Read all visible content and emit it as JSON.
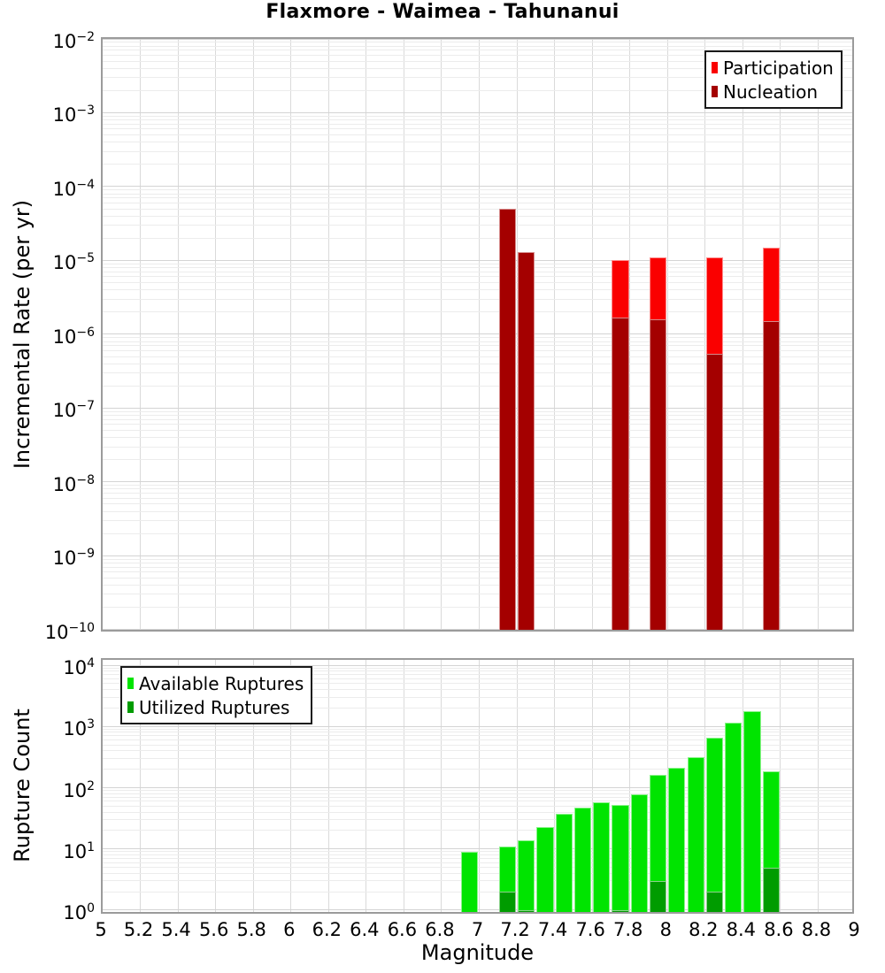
{
  "chart_data": [
    {
      "type": "bar",
      "name": "incremental-rate-mfd",
      "title": "Flaxmore - Waimea - Tahunanui",
      "xlabel": "",
      "ylabel": "Incremental Rate (per yr)",
      "x_range": [
        5,
        9
      ],
      "x_tick_step": 0.2,
      "y_scale": "log",
      "ylim": [
        1e-10,
        0.01
      ],
      "y_tick_exponents": [
        -2,
        -3,
        -4,
        -5,
        -6,
        -7,
        -8,
        -9,
        -10
      ],
      "bin_width": 0.1,
      "grid": true,
      "legend_position": "top-right",
      "series": [
        {
          "name": "Participation",
          "color": "#fa0000",
          "bins": [
            7.1,
            7.2,
            7.7,
            7.9,
            8.2,
            8.5
          ],
          "values": [
            5e-05,
            1.3e-05,
            1e-05,
            1.1e-05,
            1.1e-05,
            1.5e-05
          ]
        },
        {
          "name": "Nucleation",
          "color": "#a40000",
          "bins": [
            7.1,
            7.2,
            7.7,
            7.9,
            8.2,
            8.5
          ],
          "values": [
            5e-05,
            1.3e-05,
            1.7e-06,
            1.6e-06,
            5.5e-07,
            1.5e-06
          ]
        }
      ]
    },
    {
      "type": "bar",
      "name": "rupture-count",
      "title": "",
      "xlabel": "Magnitude",
      "ylabel": "Rupture Count",
      "x_range": [
        5,
        9
      ],
      "x_tick_step": 0.2,
      "y_scale": "log",
      "ylim": [
        1,
        10000
      ],
      "y_tick_exponents": [
        4,
        3,
        2,
        1,
        0
      ],
      "bin_width": 0.1,
      "grid": true,
      "legend_position": "top-left",
      "series": [
        {
          "name": "Available Ruptures",
          "color": "#00e400",
          "bins": [
            6.9,
            7.1,
            7.2,
            7.3,
            7.4,
            7.5,
            7.6,
            7.7,
            7.8,
            7.9,
            8.0,
            8.1,
            8.2,
            8.3,
            8.4,
            8.5
          ],
          "values": [
            9,
            11,
            14,
            23,
            38,
            47,
            57,
            52,
            77,
            160,
            210,
            320,
            660,
            1150,
            1800,
            185
          ]
        },
        {
          "name": "Utilized Ruptures",
          "color": "#009c00",
          "bins": [
            7.1,
            7.2,
            7.7,
            7.9,
            8.2,
            8.5
          ],
          "values": [
            2,
            1,
            1,
            3,
            2,
            5
          ]
        }
      ]
    }
  ]
}
